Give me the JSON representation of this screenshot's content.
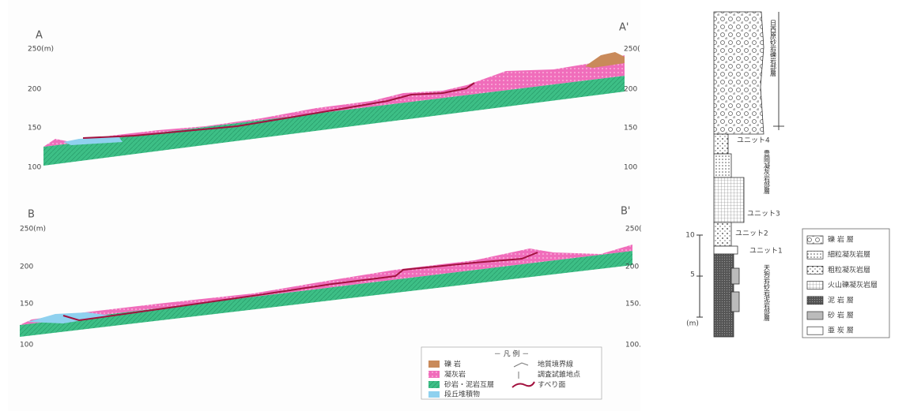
{
  "section_a": {
    "start_label": "A",
    "end_label": "A'",
    "left_scale": [
      "250(m)",
      "200",
      "150",
      "100"
    ],
    "right_scale": [
      "250(",
      "200",
      "150",
      "100"
    ]
  },
  "section_b": {
    "start_label": "B",
    "end_label": "B'",
    "left_scale": [
      "250(m)",
      "200",
      "150",
      "100"
    ],
    "right_scale": [
      "250(",
      "200",
      "150.",
      "100."
    ]
  },
  "legend": {
    "title": "－ 凡 例 －",
    "items": [
      "礫 岩",
      "凝灰岩",
      "砂岩・泥岩互層",
      "段丘堆積物",
      "地質境界線",
      "調査試錐地点",
      "すべり面"
    ]
  },
  "column": {
    "units": [
      "日西原砂岩礫岩部層",
      "ユニット4",
      "豊岡凝灰岩部層",
      "ユニット3",
      "ユニット2",
      "ユニット1",
      "天狗岩砂岩泥岩部層"
    ],
    "scale": [
      "10",
      "5",
      "(m)"
    ]
  },
  "column_legend": {
    "items": [
      "礫 岩 層",
      "細粒凝灰岩層",
      "粗粒凝灰岩層",
      "火山礫凝灰岩層",
      "泥 岩 層",
      "砂 岩 層",
      "亜 炭 層"
    ]
  }
}
